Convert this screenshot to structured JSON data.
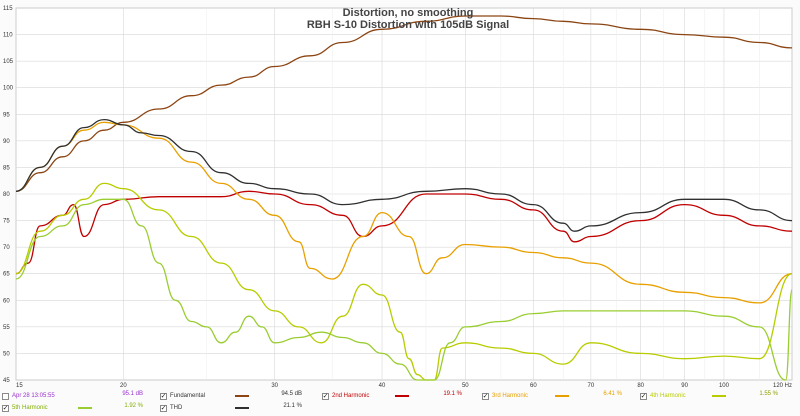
{
  "chart_data": {
    "type": "line",
    "title": "Distortion, no smoothing",
    "subtitle": "RBH S-10 Distortion with 105dB Signal",
    "xscale": "log",
    "xlim": [
      15,
      120
    ],
    "ylim": [
      45,
      115
    ],
    "xticks": [
      "15",
      "20",
      "30",
      "40",
      "50",
      "60",
      "70",
      "80",
      "90",
      "100",
      "120 Hz"
    ],
    "yticks": [
      "45",
      "50",
      "55",
      "60",
      "65",
      "70",
      "75",
      "80",
      "85",
      "90",
      "95",
      "100",
      "105",
      "110",
      "115"
    ],
    "grid": true,
    "series": [
      {
        "name": "Fundamental",
        "color": "#8b4513",
        "readout": "94.5 dB",
        "x": [
          15,
          16,
          17,
          18,
          19,
          20,
          22,
          24,
          26,
          28,
          30,
          33,
          36,
          40,
          45,
          50,
          55,
          60,
          65,
          70,
          80,
          90,
          100,
          110,
          120
        ],
        "y": [
          80.5,
          84,
          87,
          90,
          92,
          93.5,
          96,
          98.5,
          100.5,
          102,
          104,
          106,
          108.5,
          111,
          112.5,
          113.5,
          113.5,
          113,
          112.5,
          112,
          111,
          110,
          109.5,
          108.5,
          107.5
        ]
      },
      {
        "name": "2nd Harmonic",
        "color": "#c00000",
        "readout": "19.1 %",
        "x": [
          15,
          15.5,
          16,
          17,
          17.5,
          18,
          19,
          20,
          22,
          24,
          26,
          28,
          30,
          33,
          36,
          38,
          40,
          45,
          50,
          55,
          60,
          65,
          67,
          70,
          80,
          90,
          100,
          110,
          120
        ],
        "y": [
          65,
          67,
          74,
          76,
          78,
          72,
          78,
          79,
          79.5,
          79.5,
          79.5,
          80.5,
          80,
          78,
          76,
          72,
          74,
          80,
          80,
          79,
          77,
          73,
          71,
          72,
          75,
          78,
          76,
          74,
          73
        ]
      },
      {
        "name": "3rd Harmonic",
        "color": "#e8a000",
        "readout": "6.41 %",
        "x": [
          15,
          16,
          17,
          18,
          19,
          20,
          22,
          24,
          26,
          28,
          30,
          32,
          33,
          35,
          38,
          40,
          43,
          45,
          47,
          50,
          55,
          60,
          65,
          70,
          80,
          90,
          100,
          110,
          120
        ],
        "y": [
          80.5,
          85,
          89,
          92,
          93.5,
          93,
          90.5,
          86,
          82,
          79,
          76,
          71,
          66,
          64,
          72,
          76.5,
          72,
          65,
          68,
          70.5,
          70,
          69,
          68,
          67,
          63,
          61.5,
          60.5,
          59.5,
          65
        ]
      },
      {
        "name": "4th Harmonic",
        "color": "#b8cc00",
        "readout": "1.55 %",
        "x": [
          15,
          16,
          17,
          18,
          19,
          20,
          22,
          24,
          26,
          28,
          30,
          32,
          34,
          36,
          38,
          40,
          42,
          43,
          44,
          45,
          46,
          47,
          50,
          55,
          60,
          65,
          70,
          80,
          90,
          100,
          110,
          120
        ],
        "y": [
          65,
          73,
          76,
          79,
          82,
          81,
          77,
          72,
          67,
          62,
          58,
          55,
          52,
          57,
          63,
          61,
          54,
          49,
          46,
          40,
          40,
          51,
          52,
          51,
          50,
          48,
          52,
          50,
          49,
          49.5,
          49,
          65
        ]
      },
      {
        "name": "5th Harmonic",
        "color": "#9acd32",
        "readout": "1.92 %",
        "x": [
          15,
          16,
          17,
          18,
          19,
          20,
          21,
          22,
          23,
          24,
          25,
          26,
          27,
          28,
          29,
          30,
          32,
          34,
          36,
          38,
          40,
          42,
          44,
          46,
          48,
          50,
          55,
          60,
          65,
          70,
          80,
          90,
          100,
          110,
          118,
          120
        ],
        "y": [
          64,
          72,
          74,
          78,
          79,
          79,
          74,
          67,
          60,
          56,
          55,
          52,
          54,
          57,
          55,
          52,
          53,
          54,
          53,
          52,
          50,
          48,
          45,
          40,
          52,
          55,
          56,
          57.5,
          58,
          58,
          58,
          58,
          57,
          55,
          45,
          62
        ]
      },
      {
        "name": "THD",
        "color": "#303030",
        "readout": "21.1 %",
        "x": [
          15,
          16,
          17,
          18,
          19,
          20,
          21,
          22,
          24,
          26,
          28,
          30,
          33,
          36,
          40,
          45,
          50,
          55,
          60,
          65,
          67,
          70,
          80,
          90,
          100,
          110,
          120
        ],
        "y": [
          80.5,
          85,
          89,
          92.5,
          94,
          93,
          91.5,
          91,
          88,
          84,
          82,
          81,
          80,
          78,
          79,
          80.5,
          81,
          80,
          78,
          74.5,
          73,
          74,
          76.5,
          79,
          79,
          77,
          75
        ]
      }
    ]
  },
  "legend": {
    "cursor_time": "Apr 28 13:05:55",
    "cursor_level": "95.1 dB",
    "checkmark": "✓",
    "fundamental_value": "94.5 dB",
    "h2_value": "19.1 %",
    "h3_value": "6.41 %",
    "h4_value": "1.55 %",
    "h5_value": "1.92 %",
    "thd_value": "21.1 %",
    "fundamental_label": "Fundamental",
    "h2_label": "2nd Harmonic",
    "h3_label": "3rd Harmonic",
    "h4_label": "4th Harmonic",
    "h5_label": "5th Harmonic",
    "thd_label": "THD"
  },
  "colors": {
    "plot_bg": "#ffffff",
    "grid": "#d8d8d8",
    "cursor_text": "#9b30d0"
  }
}
